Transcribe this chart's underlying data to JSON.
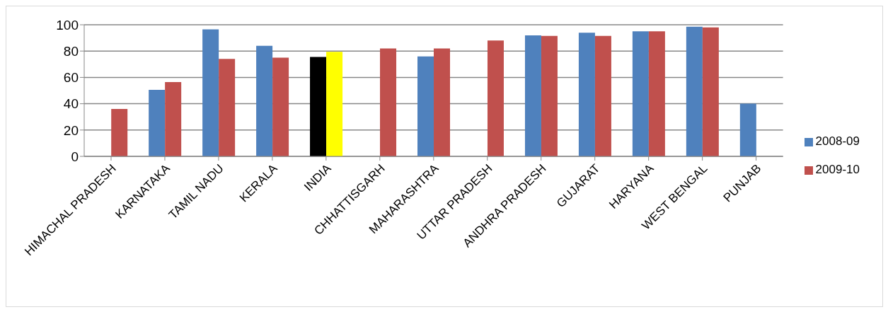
{
  "chart_data": {
    "type": "bar",
    "categories": [
      "HIMACHAL PRADESH",
      "KARNATAKA",
      "TAMIL NADU",
      "KERALA",
      "INDIA",
      "CHHATTISGARH",
      "MAHARASHTRA",
      "UTTAR PRADESH",
      "ANDHRA PRADESH",
      "GUJARAT",
      "HARYANA",
      "WEST BENGAL",
      "PUNJAB"
    ],
    "series": [
      {
        "name": "2008-09",
        "color": "#4f81bd",
        "colors": [
          "#4f81bd",
          "#4f81bd",
          "#4f81bd",
          "#4f81bd",
          "#000000",
          "#4f81bd",
          "#4f81bd",
          "#4f81bd",
          "#4f81bd",
          "#4f81bd",
          "#4f81bd",
          "#4f81bd",
          "#4f81bd"
        ],
        "values": [
          null,
          50.5,
          96.5,
          84,
          75.5,
          null,
          76,
          null,
          92,
          94,
          95,
          98.5,
          40
        ]
      },
      {
        "name": "2009-10",
        "color": "#c0504d",
        "colors": [
          "#c0504d",
          "#c0504d",
          "#c0504d",
          "#c0504d",
          "#ffff00",
          "#c0504d",
          "#c0504d",
          "#c0504d",
          "#c0504d",
          "#c0504d",
          "#c0504d",
          "#c0504d",
          "#c0504d"
        ],
        "values": [
          36,
          56.5,
          74,
          75,
          79.5,
          82,
          82,
          88,
          91.5,
          91.5,
          95,
          98,
          null
        ]
      }
    ],
    "ylim": [
      0,
      100
    ],
    "yticks": [
      0,
      20,
      40,
      60,
      80,
      100
    ],
    "grid": "y",
    "legend": "right"
  }
}
